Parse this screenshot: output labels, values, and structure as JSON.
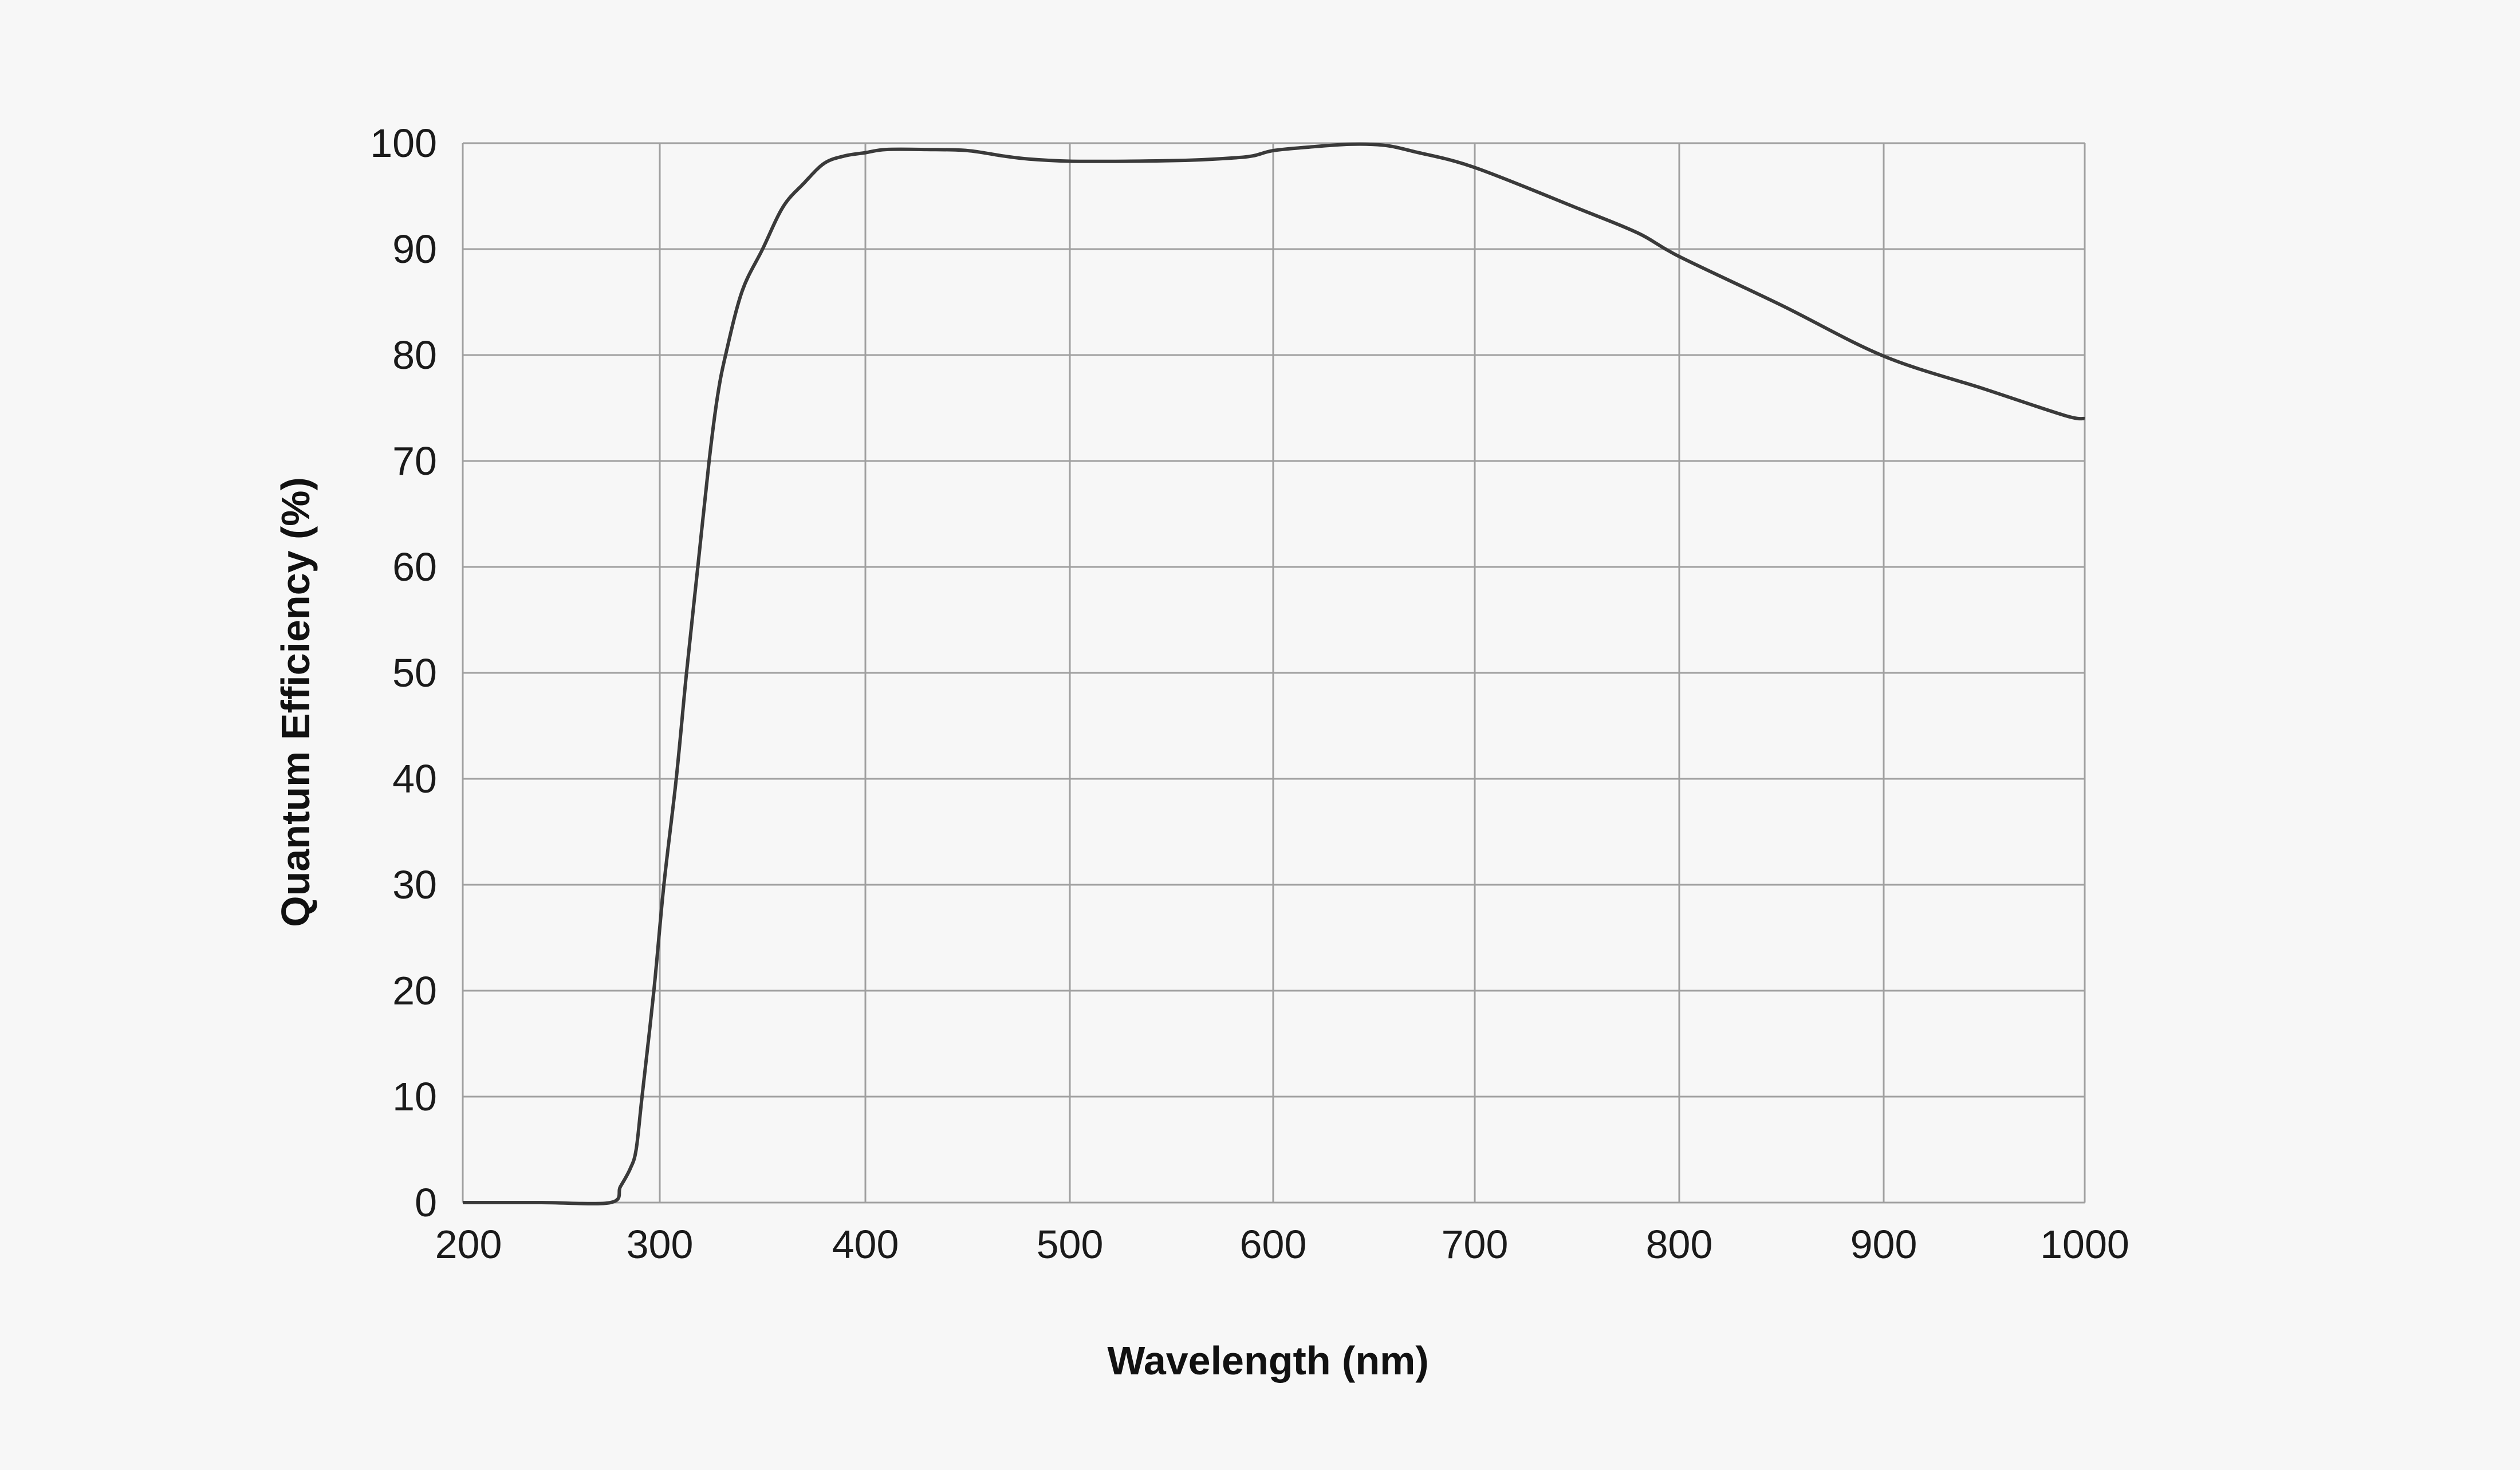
{
  "chart_data": {
    "type": "line",
    "title": "",
    "xlabel": "Wavelength (nm)",
    "ylabel": "Quantum Efficiency (%)",
    "xlim": [
      200,
      1000
    ],
    "ylim": [
      0,
      100
    ],
    "xticks": [
      200,
      300,
      400,
      500,
      600,
      700,
      800,
      900,
      1000
    ],
    "yticks": [
      0,
      10,
      20,
      30,
      40,
      50,
      60,
      70,
      80,
      90,
      100
    ],
    "grid": true,
    "line_color": "#3a3a3a",
    "grid_color": "#a0a0a0",
    "background": "#f7f7f7",
    "series": [
      {
        "x": [
          200,
          240,
          275,
          280,
          285,
          288,
          291,
          297,
          302,
          308,
          313,
          318.5,
          324,
          328,
          332,
          340,
          350,
          360,
          370,
          380,
          390,
          400,
          410,
          430,
          450,
          467,
          480,
          500,
          530,
          560,
          580,
          590,
          600,
          616,
          638,
          655,
          670,
          700,
          751,
          780,
          800,
          850,
          900,
          950,
          990,
          1000
        ],
        "y": [
          0,
          0,
          0,
          1.5,
          3.2,
          5,
          10,
          20,
          30,
          40,
          50,
          60,
          70,
          76,
          80,
          86,
          90,
          94,
          96.2,
          98.1,
          98.8,
          99.1,
          99.4,
          99.4,
          99.3,
          98.8,
          98.5,
          98.3,
          98.3,
          98.4,
          98.6,
          98.8,
          99.3,
          99.6,
          99.9,
          99.8,
          99.2,
          97.7,
          93.8,
          91.5,
          89.3,
          84.7,
          79.9,
          76.8,
          74.3,
          74.0
        ]
      }
    ]
  }
}
